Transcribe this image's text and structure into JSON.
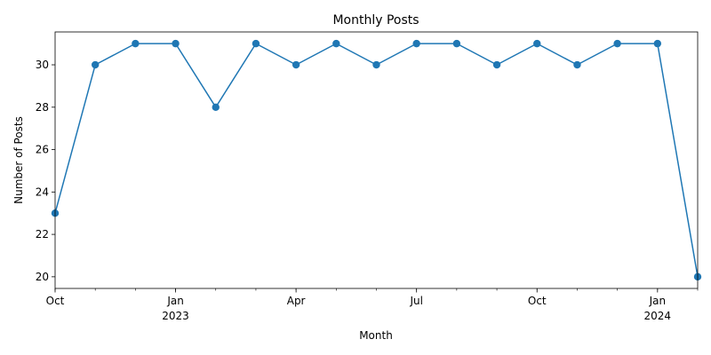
{
  "chart_data": {
    "type": "line",
    "title": "Monthly Posts",
    "xlabel": "Month",
    "ylabel": "Number of Posts",
    "x": [
      "2022-10",
      "2022-11",
      "2022-12",
      "2023-01",
      "2023-02",
      "2023-03",
      "2023-04",
      "2023-05",
      "2023-06",
      "2023-07",
      "2023-08",
      "2023-09",
      "2023-10",
      "2023-11",
      "2023-12",
      "2024-01",
      "2024-02"
    ],
    "series": [
      {
        "values": [
          23,
          30,
          31,
          31,
          28,
          31,
          30,
          31,
          30,
          31,
          31,
          30,
          31,
          30,
          31,
          31,
          20
        ],
        "color": "#1f77b4",
        "marker": "circle"
      }
    ],
    "ylim": [
      19.45,
      31.55
    ],
    "yticks": [
      20,
      22,
      24,
      26,
      28,
      30
    ],
    "xticks": [
      {
        "x": "2022-10",
        "label": "Oct",
        "sublabel": ""
      },
      {
        "x": "2023-01",
        "label": "Jan",
        "sublabel": "2023"
      },
      {
        "x": "2023-04",
        "label": "Apr",
        "sublabel": ""
      },
      {
        "x": "2023-07",
        "label": "Jul",
        "sublabel": ""
      },
      {
        "x": "2023-10",
        "label": "Oct",
        "sublabel": ""
      },
      {
        "x": "2024-01",
        "label": "Jan",
        "sublabel": "2024"
      }
    ],
    "grid": false,
    "legend": "none"
  }
}
